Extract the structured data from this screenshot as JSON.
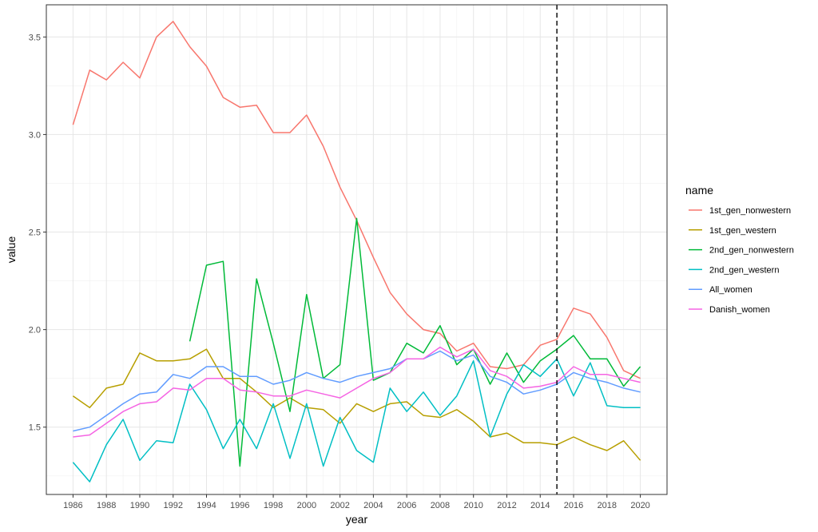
{
  "chart_data": {
    "type": "line",
    "title": "",
    "xlabel": "year",
    "ylabel": "value",
    "xlim": [
      1984.4,
      2021.6
    ],
    "ylim": [
      1.155,
      3.665
    ],
    "x_ticks": [
      1986,
      1988,
      1990,
      1992,
      1994,
      1996,
      1998,
      2000,
      2002,
      2004,
      2006,
      2008,
      2010,
      2012,
      2014,
      2016,
      2018,
      2020
    ],
    "x_tick_labels": [
      "1986",
      "1988",
      "1990",
      "1992",
      "1994",
      "1996",
      "1998",
      "2000",
      "2002",
      "2004",
      "2006",
      "2008",
      "2010",
      "2012",
      "2014",
      "2016",
      "2018",
      "2020"
    ],
    "y_ticks": [
      1.5,
      2.0,
      2.5,
      3.0,
      3.5
    ],
    "y_tick_labels": [
      "1.5",
      "2.0",
      "2.5",
      "3.0",
      "3.5"
    ],
    "grid": true,
    "vline": {
      "x": 2015,
      "style": "dashed"
    },
    "legend": {
      "title": "name",
      "position": "right"
    },
    "x": [
      1986,
      1987,
      1988,
      1989,
      1990,
      1991,
      1992,
      1993,
      1994,
      1995,
      1996,
      1997,
      1998,
      1999,
      2000,
      2001,
      2002,
      2003,
      2004,
      2005,
      2006,
      2007,
      2008,
      2009,
      2010,
      2011,
      2012,
      2013,
      2014,
      2015,
      2016,
      2017,
      2018,
      2019,
      2020
    ],
    "series": [
      {
        "name": "1st_gen_nonwestern",
        "color": "#F8766D",
        "values": [
          3.05,
          3.33,
          3.28,
          3.37,
          3.29,
          3.5,
          3.58,
          3.45,
          3.35,
          3.19,
          3.14,
          3.15,
          3.01,
          3.01,
          3.1,
          2.94,
          2.73,
          2.56,
          2.37,
          2.19,
          2.08,
          2.0,
          1.98,
          1.89,
          1.93,
          1.81,
          1.8,
          1.82,
          1.92,
          1.95,
          2.11,
          2.08,
          1.96,
          1.79,
          1.75
        ]
      },
      {
        "name": "1st_gen_western",
        "color": "#B79F00",
        "values": [
          1.66,
          1.6,
          1.7,
          1.72,
          1.88,
          1.84,
          1.84,
          1.85,
          1.9,
          1.75,
          1.75,
          1.68,
          1.6,
          1.65,
          1.6,
          1.59,
          1.52,
          1.62,
          1.58,
          1.62,
          1.63,
          1.56,
          1.55,
          1.59,
          1.53,
          1.45,
          1.47,
          1.42,
          1.42,
          1.41,
          1.45,
          1.41,
          1.38,
          1.43,
          1.33
        ]
      },
      {
        "name": "2nd_gen_nonwestern",
        "color": "#00BA38",
        "values": [
          null,
          null,
          null,
          null,
          null,
          null,
          null,
          1.94,
          2.33,
          2.35,
          1.3,
          2.26,
          1.93,
          1.58,
          2.18,
          1.75,
          1.82,
          2.57,
          1.74,
          1.78,
          1.93,
          1.88,
          2.02,
          1.82,
          1.9,
          1.72,
          1.88,
          1.73,
          1.84,
          1.9,
          1.97,
          1.85,
          1.85,
          1.71,
          1.81
        ]
      },
      {
        "name": "2nd_gen_western",
        "color": "#00BFC4",
        "values": [
          1.32,
          1.22,
          1.41,
          1.54,
          1.33,
          1.43,
          1.42,
          1.72,
          1.59,
          1.39,
          1.54,
          1.39,
          1.62,
          1.34,
          1.62,
          1.3,
          1.55,
          1.38,
          1.32,
          1.7,
          1.58,
          1.68,
          1.56,
          1.66,
          1.84,
          1.45,
          1.67,
          1.82,
          1.76,
          1.85,
          1.66,
          1.83,
          1.61,
          1.6,
          1.6
        ]
      },
      {
        "name": "All_women",
        "color": "#619CFF",
        "values": [
          1.48,
          1.5,
          1.56,
          1.62,
          1.67,
          1.68,
          1.77,
          1.75,
          1.81,
          1.81,
          1.76,
          1.76,
          1.72,
          1.74,
          1.78,
          1.75,
          1.73,
          1.76,
          1.78,
          1.8,
          1.85,
          1.85,
          1.89,
          1.84,
          1.87,
          1.76,
          1.73,
          1.67,
          1.69,
          1.72,
          1.78,
          1.75,
          1.73,
          1.7,
          1.68
        ]
      },
      {
        "name": "Danish_women",
        "color": "#F564E3",
        "values": [
          1.45,
          1.46,
          1.52,
          1.58,
          1.62,
          1.63,
          1.7,
          1.69,
          1.75,
          1.75,
          1.69,
          1.68,
          1.66,
          1.66,
          1.69,
          1.67,
          1.65,
          1.7,
          1.75,
          1.78,
          1.85,
          1.85,
          1.91,
          1.86,
          1.9,
          1.79,
          1.76,
          1.7,
          1.71,
          1.73,
          1.81,
          1.77,
          1.77,
          1.75,
          1.73
        ]
      }
    ]
  }
}
